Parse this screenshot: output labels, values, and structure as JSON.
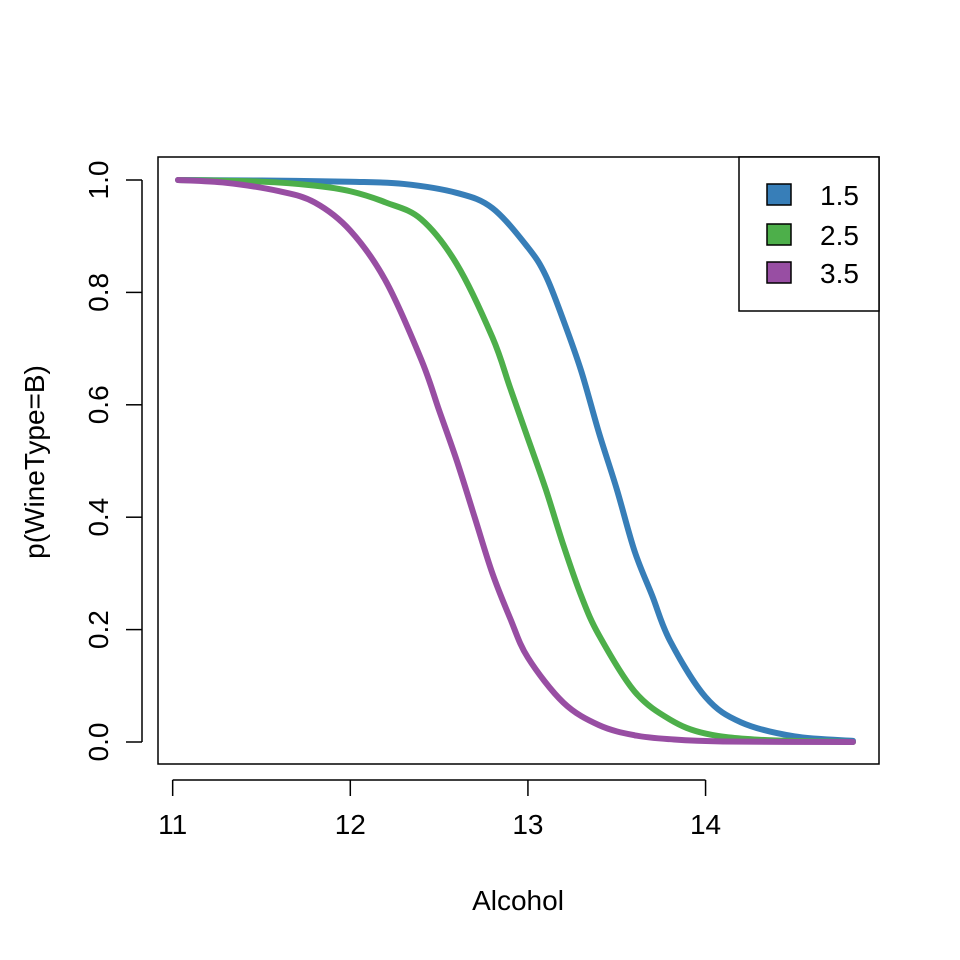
{
  "chart_data": {
    "type": "line",
    "xlabel": "Alcohol",
    "ylabel": "p(WineType=B)",
    "xlim": [
      11.03,
      14.83
    ],
    "ylim": [
      0,
      1
    ],
    "x_ticks": [
      11,
      12,
      13,
      14
    ],
    "y_ticks": [
      0.0,
      0.2,
      0.4,
      0.6,
      0.8,
      1.0
    ],
    "x_tick_labels": [
      "11",
      "12",
      "13",
      "14"
    ],
    "y_tick_labels": [
      "0.0",
      "0.2",
      "0.4",
      "0.6",
      "0.8",
      "1.0"
    ],
    "legend_position": "top-right",
    "legend_entries": [
      "1.5",
      "2.5",
      "3.5"
    ],
    "series": [
      {
        "name": "1.5",
        "color": "#377EB8",
        "x": [
          11.03,
          11.5,
          12.0,
          12.3,
          12.6,
          12.8,
          13.0,
          13.1,
          13.2,
          13.3,
          13.4,
          13.5,
          13.6,
          13.7,
          13.8,
          14.0,
          14.2,
          14.5,
          14.83
        ],
        "y": [
          1.0,
          0.999,
          0.997,
          0.993,
          0.977,
          0.95,
          0.88,
          0.83,
          0.75,
          0.66,
          0.55,
          0.45,
          0.34,
          0.26,
          0.18,
          0.08,
          0.035,
          0.01,
          0.002
        ]
      },
      {
        "name": "2.5",
        "color": "#4DAF4A",
        "x": [
          11.03,
          11.5,
          11.8,
          12.0,
          12.2,
          12.4,
          12.6,
          12.8,
          12.9,
          13.0,
          13.1,
          13.2,
          13.3,
          13.4,
          13.6,
          13.8,
          14.0,
          14.3,
          14.83
        ],
        "y": [
          1.0,
          0.997,
          0.99,
          0.98,
          0.96,
          0.93,
          0.85,
          0.72,
          0.63,
          0.54,
          0.45,
          0.35,
          0.26,
          0.19,
          0.09,
          0.04,
          0.015,
          0.004,
          0.0
        ]
      },
      {
        "name": "3.5",
        "color": "#984EA3",
        "x": [
          11.03,
          11.3,
          11.6,
          11.8,
          12.0,
          12.2,
          12.4,
          12.5,
          12.6,
          12.7,
          12.8,
          12.9,
          13.0,
          13.2,
          13.4,
          13.6,
          13.8,
          14.1,
          14.83
        ],
        "y": [
          1.0,
          0.995,
          0.98,
          0.96,
          0.91,
          0.82,
          0.68,
          0.59,
          0.5,
          0.4,
          0.3,
          0.22,
          0.15,
          0.07,
          0.03,
          0.012,
          0.005,
          0.001,
          0.0
        ]
      }
    ]
  }
}
